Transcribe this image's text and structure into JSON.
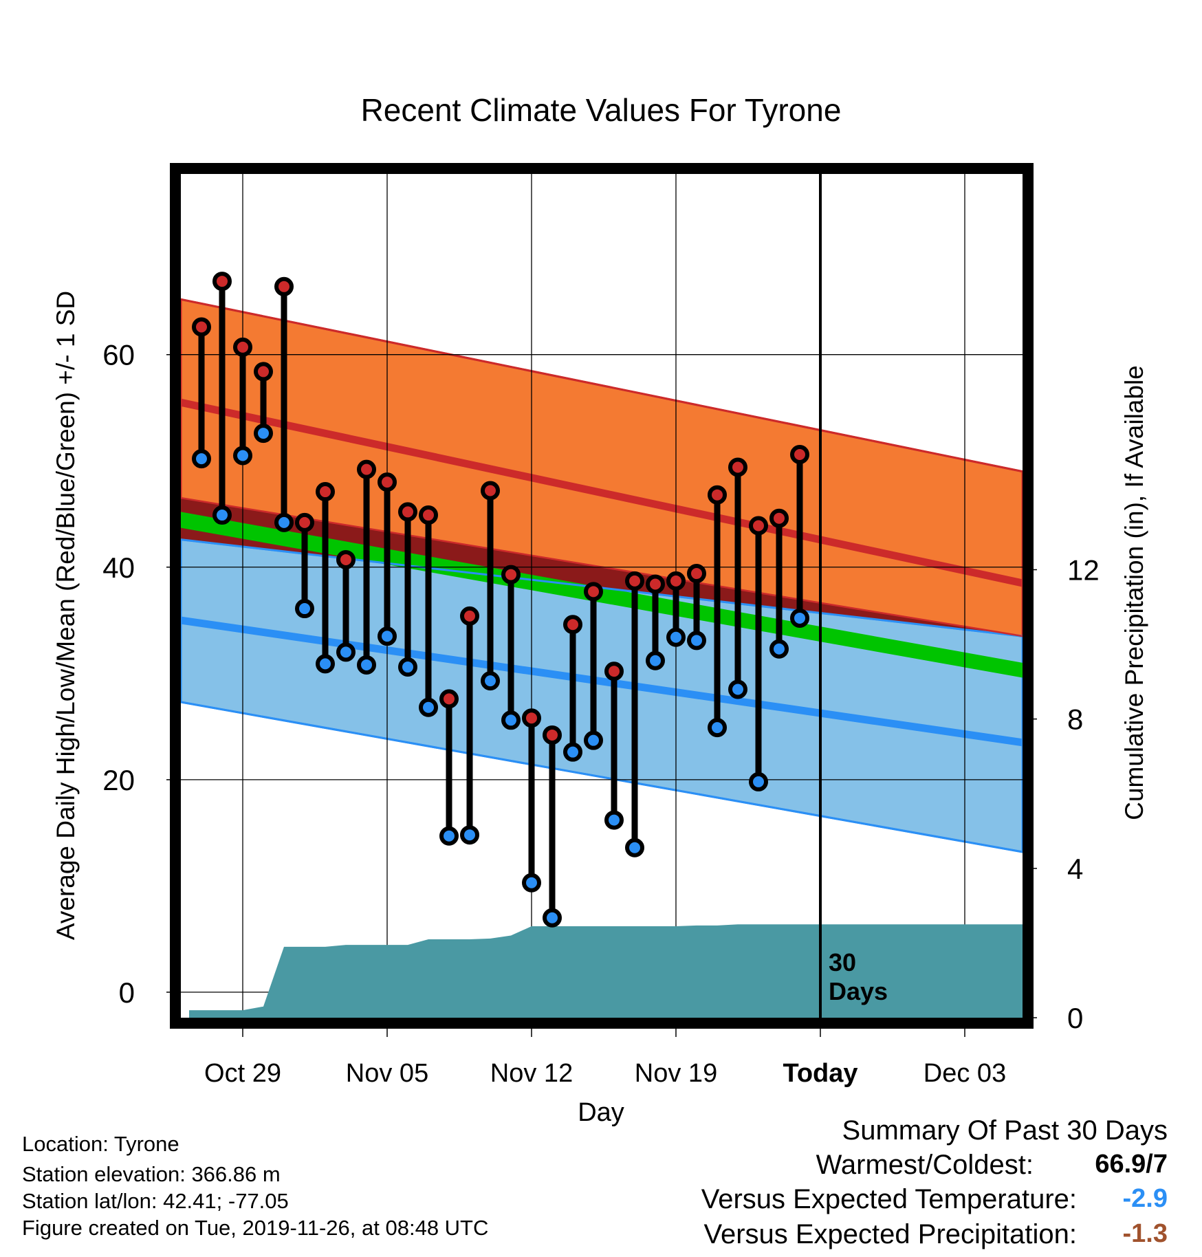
{
  "chart_data": {
    "type": "line",
    "title": "Recent Climate Values For Tyrone",
    "xlabel": "Day",
    "ylabel_left": "Average Daily High/Low/Mean (Red/Blue/Green) +/- 1 SD",
    "ylabel_right": "Cumulative Precipitation (in), If Available",
    "x_ticks": [
      {
        "day": 0,
        "label": "Oct 29"
      },
      {
        "day": 7,
        "label": "Nov 05"
      },
      {
        "day": 14,
        "label": "Nov 12"
      },
      {
        "day": 21,
        "label": "Nov 19"
      },
      {
        "day": 28,
        "label": "Today"
      },
      {
        "day": 35,
        "label": "Dec 03"
      }
    ],
    "x_range_days": [
      -3,
      37.8
    ],
    "y_left_ticks": [
      0,
      20,
      40,
      60
    ],
    "y_left_range": [
      -2.4,
      77
    ],
    "y_right_ticks": [
      0,
      4,
      8,
      12
    ],
    "y_right_range": [
      0,
      22.6
    ],
    "today_label": "30 Days",
    "grid": true,
    "normals": {
      "days": [
        -3,
        37.8
      ],
      "high_mean": [
        55.5,
        38.5
      ],
      "high_upper": [
        65.2,
        49
      ],
      "high_lower": [
        46.5,
        33.5
      ],
      "low_mean": [
        35,
        23.5
      ],
      "low_upper": [
        42.6,
        33.5
      ],
      "low_lower": [
        27.3,
        13.2
      ],
      "mean_upper": [
        45.2,
        31
      ],
      "mean_lower": [
        43.7,
        29.6
      ]
    },
    "series": [
      {
        "name": "Daily High",
        "color": "#cc2a2a",
        "days": [
          -2,
          -1,
          0,
          1,
          2,
          3,
          4,
          5,
          6,
          7,
          8,
          9,
          10,
          11,
          12,
          13,
          14,
          15,
          16,
          17,
          18,
          19,
          20,
          21,
          22,
          23,
          24,
          25,
          26,
          27
        ],
        "values": [
          62.6,
          66.9,
          60.7,
          58.4,
          66.4,
          44.2,
          47.1,
          40.7,
          49.2,
          48.0,
          45.2,
          44.9,
          27.6,
          35.4,
          47.2,
          39.3,
          25.8,
          24.2,
          34.6,
          37.7,
          30.2,
          38.7,
          38.4,
          38.7,
          39.4,
          46.8,
          49.4,
          43.9,
          44.6,
          50.6
        ]
      },
      {
        "name": "Daily Low",
        "color": "#2b8ff5",
        "days": [
          -2,
          -1,
          0,
          1,
          2,
          3,
          4,
          5,
          6,
          7,
          8,
          9,
          10,
          11,
          12,
          13,
          14,
          15,
          16,
          17,
          18,
          19,
          20,
          21,
          22,
          23,
          24,
          25,
          26,
          27
        ],
        "values": [
          50.2,
          44.9,
          50.5,
          52.6,
          44.2,
          36.1,
          30.9,
          32.0,
          30.8,
          33.5,
          30.6,
          26.8,
          14.7,
          14.8,
          29.3,
          25.6,
          10.3,
          7.0,
          22.6,
          23.7,
          16.2,
          13.6,
          31.2,
          33.4,
          33.1,
          24.9,
          28.5,
          19.8,
          32.3,
          35.2
        ]
      },
      {
        "name": "Cumulative Precipitation",
        "color": "#4a99a3",
        "days": [
          -2.6,
          -1.5,
          0,
          1,
          2,
          3,
          4,
          5,
          6,
          7,
          8,
          9,
          10,
          11,
          12,
          13,
          14,
          15,
          16,
          17,
          18,
          19,
          20,
          21,
          22,
          23,
          24,
          25,
          26,
          27,
          28,
          37.8
        ],
        "values": [
          0.2,
          0.2,
          0.2,
          0.3,
          1.9,
          1.9,
          1.9,
          1.95,
          1.95,
          1.95,
          1.95,
          2.1,
          2.1,
          2.1,
          2.12,
          2.2,
          2.45,
          2.45,
          2.45,
          2.45,
          2.45,
          2.45,
          2.45,
          2.45,
          2.47,
          2.47,
          2.5,
          2.5,
          2.5,
          2.5,
          2.5,
          2.5
        ]
      }
    ],
    "colors": {
      "high_band": "#f47a32",
      "high_mean": "#cc2a2a",
      "low_band": "#85c1e8",
      "low_mean": "#2b8ff5",
      "mean_band": "#00c400",
      "overlap": "#8b1a1a",
      "precip": "#4a99a3"
    }
  },
  "station": {
    "location": "Location: Tyrone",
    "elevation": "Station elevation: 366.86 m",
    "latlon": "Station lat/lon: 42.41; -77.05",
    "created": "Figure created on Tue, 2019-11-26, at 08:48 UTC"
  },
  "summary": {
    "title": "Summary Of Past 30 Days",
    "warmest_label": "Warmest/Coldest:",
    "warmest_value": "66.9/7",
    "temp_label": "Versus Expected Temperature:",
    "temp_value": "-2.9",
    "temp_color": "#2b8ff5",
    "precip_label": "Versus Expected Precipitation:",
    "precip_value": "-1.3",
    "precip_color": "#a0522d"
  }
}
